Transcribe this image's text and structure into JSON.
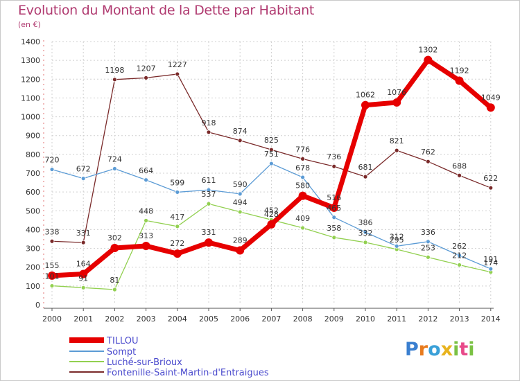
{
  "title": "Evolution du Montant de la Dette par Habitant",
  "unit": "(en €)",
  "brand": "Proxiti",
  "chart_data": {
    "type": "line",
    "title": "Evolution du Montant de la Dette par Habitant",
    "subtitle": "(en €)",
    "x": [
      "2000",
      "2001",
      "2002",
      "2003",
      "2004",
      "2005",
      "2006",
      "2007",
      "2008",
      "2009",
      "2010",
      "2011",
      "2012",
      "2013",
      "2014"
    ],
    "ylim": [
      0,
      1400
    ],
    "yticks": [
      0,
      100,
      200,
      300,
      400,
      500,
      600,
      700,
      800,
      900,
      1000,
      1100,
      1200,
      1300,
      1400
    ],
    "grid": true,
    "legend": "bottom-left",
    "series": [
      {
        "name": "TILLOU",
        "color": "#e60000",
        "values": [
          155,
          164,
          302,
          313,
          272,
          331,
          289,
          428,
          580,
          516,
          1062,
          1076,
          1302,
          1192,
          1049
        ],
        "labels": [
          "155",
          "164",
          "302",
          "313",
          "272",
          "331",
          "289",
          "428",
          "580",
          "516",
          "1062",
          "1076",
          "1302",
          "1192",
          "1049"
        ]
      },
      {
        "name": "Sompt",
        "color": "#5b9bd5",
        "values": [
          720,
          672,
          724,
          664,
          599,
          611,
          590,
          751,
          678,
          465,
          386,
          312,
          336,
          262,
          191
        ],
        "labels": [
          "720",
          "672",
          "724",
          "664",
          "599",
          "611",
          "590",
          "751",
          "678",
          "465",
          "386",
          "312",
          "336",
          "262",
          "191"
        ]
      },
      {
        "name": "Luché-sur-Brioux",
        "color": "#92d050",
        "values": [
          101,
          91,
          81,
          448,
          417,
          537,
          494,
          452,
          409,
          358,
          332,
          295,
          253,
          212,
          174
        ],
        "labels": [
          "101",
          "91",
          "81",
          "448",
          "417",
          "537",
          "494",
          "452",
          "409",
          "358",
          "332",
          "295",
          "253",
          "212",
          "174"
        ]
      },
      {
        "name": "Fontenille-Saint-Martin-d'Entraigues",
        "color": "#7a2a2a",
        "values": [
          338,
          331,
          1198,
          1207,
          1227,
          918,
          874,
          825,
          776,
          736,
          681,
          821,
          762,
          688,
          622
        ],
        "labels": [
          "338",
          "331",
          "1198",
          "1207",
          "1227",
          "918",
          "874",
          "825",
          "776",
          "736",
          "681",
          "821",
          "762",
          "688",
          "622"
        ]
      }
    ]
  }
}
